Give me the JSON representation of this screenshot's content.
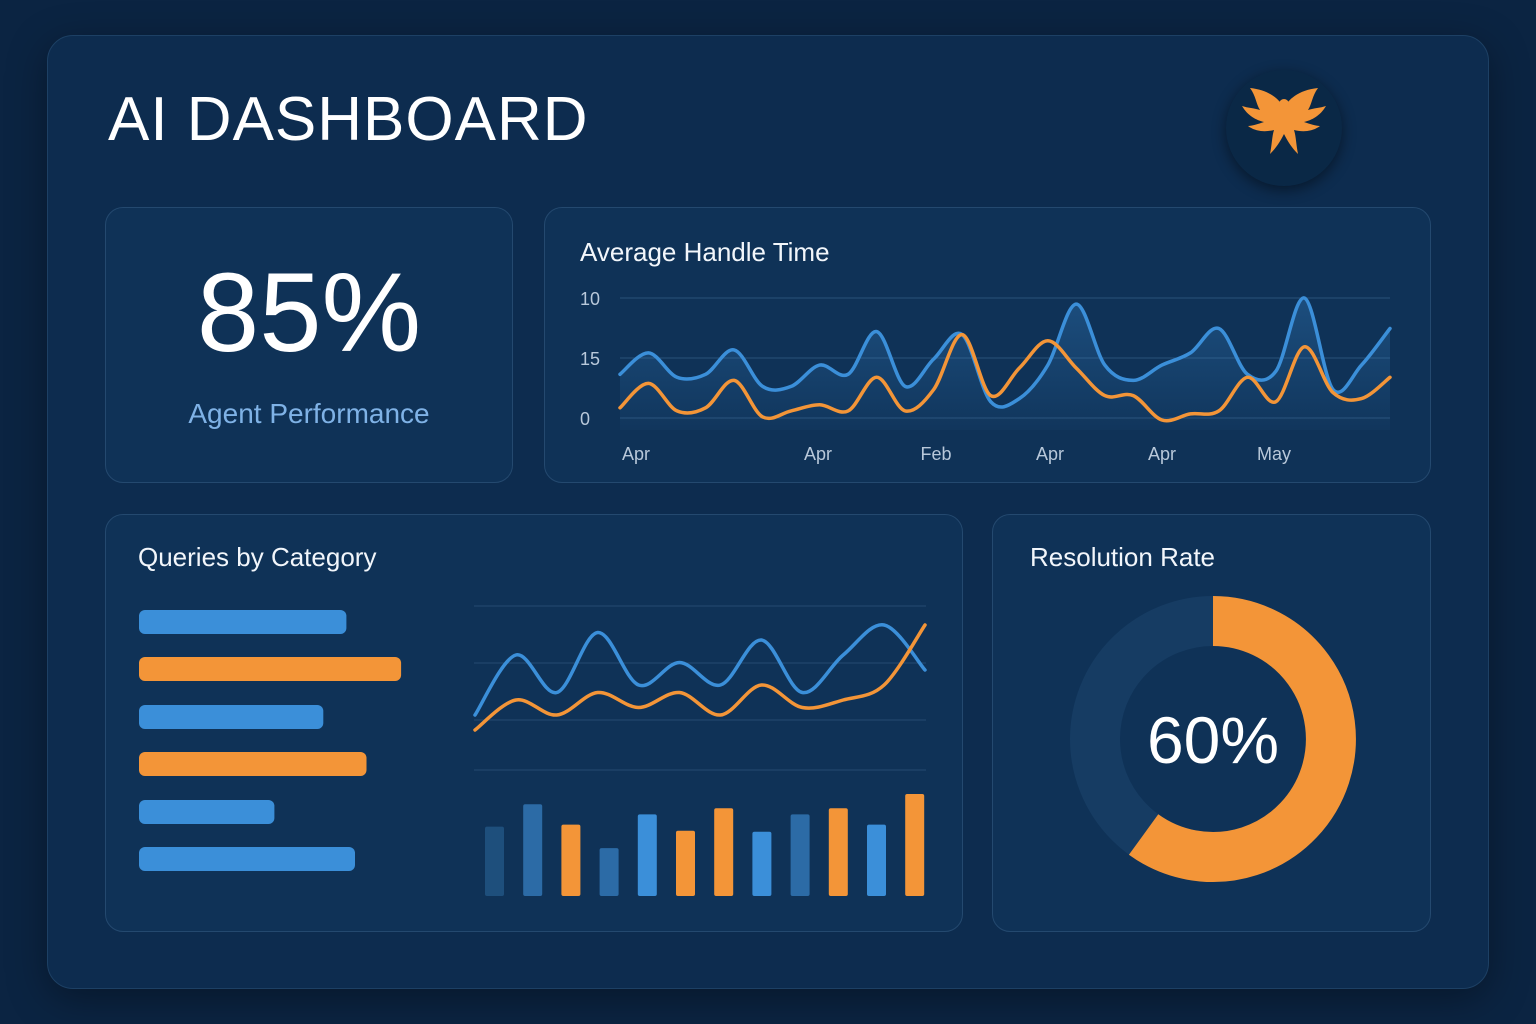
{
  "header": {
    "title": "AI DASHBOARD",
    "logo": "phoenix-logo"
  },
  "colors": {
    "blue": "#3b8fd9",
    "orange": "#f39538",
    "bg": "#0b2442",
    "card": "#0f3257",
    "track": "#163c63"
  },
  "agent_performance": {
    "value": "85%",
    "label": "Agent Performance"
  },
  "chart_data": [
    {
      "type": "line",
      "title": "Average Handle Time",
      "y_tick_labels": [
        "10",
        "15",
        "0"
      ],
      "x_tick_labels": [
        "Apr",
        "Apr",
        "Feb",
        "Apr",
        "Apr",
        "May"
      ],
      "grid": true,
      "series": [
        {
          "color": "#3b8fd9",
          "values": [
            7.5,
            11.0,
            7.0,
            7.5,
            11.5,
            5.5,
            5.5,
            9.0,
            7.5,
            14.5,
            5.5,
            10.0,
            14.0,
            3.0,
            3.5,
            9.0,
            19.0,
            9.0,
            6.5,
            9.0,
            11.0,
            15.0,
            7.5,
            8.0,
            20.0,
            5.0,
            9.0,
            15.0
          ]
        },
        {
          "color": "#f39538",
          "values": [
            2.0,
            6.0,
            1.5,
            2.0,
            6.5,
            0.5,
            1.5,
            2.5,
            1.5,
            7.0,
            1.5,
            5.0,
            14.0,
            4.0,
            8.5,
            13.0,
            8.5,
            4.0,
            4.0,
            0.0,
            1.0,
            1.5,
            7.0,
            3.0,
            12.0,
            4.5,
            3.5,
            7.0
          ]
        }
      ]
    },
    {
      "type": "bar",
      "title": "Queries by Category",
      "orientation": "horizontal",
      "values": [
        72,
        91,
        64,
        79,
        47,
        75
      ],
      "colors": [
        "#3b8fd9",
        "#f39538",
        "#3b8fd9",
        "#f39538",
        "#3b8fd9",
        "#3b8fd9"
      ],
      "xlim": [
        0,
        100
      ]
    },
    {
      "type": "line",
      "grid": true,
      "series": [
        {
          "color": "#3b8fd9",
          "values": [
            2.0,
            6.0,
            3.5,
            7.5,
            4.0,
            5.5,
            4.0,
            7.0,
            3.5,
            6.0,
            8.0,
            5.0
          ]
        },
        {
          "color": "#f39538",
          "values": [
            1.0,
            3.0,
            2.0,
            3.5,
            2.5,
            3.5,
            2.0,
            4.0,
            2.5,
            3.0,
            4.0,
            8.0
          ]
        }
      ]
    },
    {
      "type": "bar",
      "values": [
        68,
        90,
        70,
        47,
        80,
        64,
        86,
        63,
        80,
        86,
        70,
        100
      ],
      "colors": [
        "#1e4f7c",
        "#2c6ba6",
        "#f39538",
        "#2c6ba6",
        "#3b8fd9",
        "#f39538",
        "#f39538",
        "#3b8fd9",
        "#2c6ba6",
        "#f39538",
        "#3b8fd9",
        "#f39538"
      ],
      "ylim": [
        0,
        100
      ]
    },
    {
      "type": "pie",
      "title": "Resolution Rate",
      "value": 60,
      "label": "60%",
      "slice_color": "#f39538",
      "track_color": "#163c63"
    }
  ]
}
